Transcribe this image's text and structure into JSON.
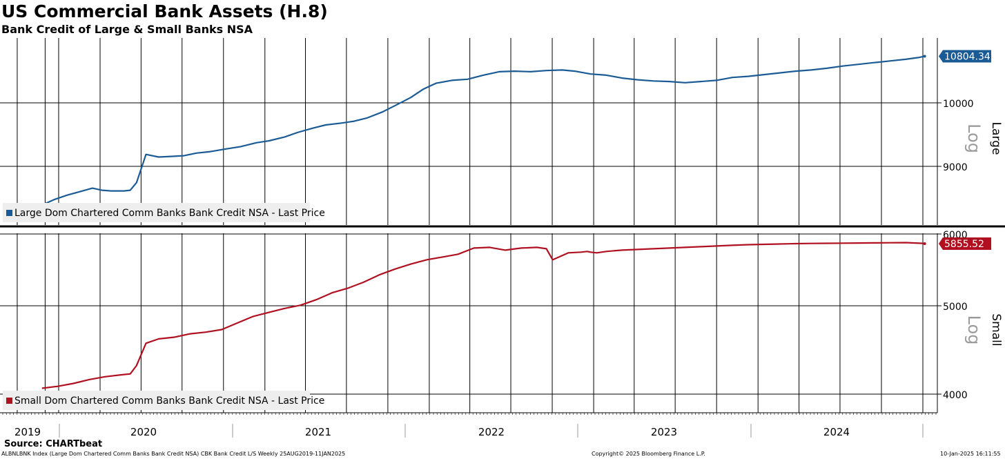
{
  "header": {
    "title": "US Commercial Bank Assets (H.8)",
    "subtitle": "Bank Credit of Large & Small Banks NSA"
  },
  "footer": {
    "source": "Source: CHARTbeat",
    "index_info": "ALBNLBNK Index (Large Dom Chartered Comm Banks Bank Credit NSA) CBK Bank Credit L/S  Weekly 25AUG2019-11JAN2025",
    "copyright": "Copyright© 2025 Bloomberg Finance L.P.",
    "timestamp": "10-Jan-2025  16:11:55"
  },
  "colors": {
    "large": "#1a5b95",
    "small": "#b01020",
    "grid": "#000000",
    "legend_bg": "#eeeeee",
    "scale_label": "#9a9a9a"
  },
  "chart_data": [
    {
      "type": "line",
      "panel": "top",
      "axis_title": "Large",
      "scale_label": "Log",
      "log_scale": true,
      "ylim": [
        8350,
        10950
      ],
      "y_ticks": [
        "10000",
        "9000"
      ],
      "x_labels": [
        "2019",
        "2020",
        "2021",
        "2022",
        "2023",
        "2024"
      ],
      "grid": true,
      "legend_position": "bottom-left",
      "last_value_label": "10804.34",
      "series": [
        {
          "name": "Large Dom Chartered Comm Banks Bank Credit NSA - Last Price",
          "color": "#1a5b95",
          "x": [
            "2019-08-25",
            "2019-09-22",
            "2019-10-20",
            "2019-11-17",
            "2019-12-15",
            "2020-01-05",
            "2020-01-26",
            "2020-02-23",
            "2020-03-08",
            "2020-03-22",
            "2020-04-12",
            "2020-05-10",
            "2020-06-07",
            "2020-07-05",
            "2020-08-02",
            "2020-08-30",
            "2020-10-04",
            "2020-11-08",
            "2020-12-13",
            "2021-01-10",
            "2021-02-14",
            "2021-03-14",
            "2021-04-18",
            "2021-05-16",
            "2021-06-20",
            "2021-07-18",
            "2021-08-15",
            "2021-09-19",
            "2021-10-24",
            "2021-11-21",
            "2021-12-19",
            "2022-01-16",
            "2022-02-20",
            "2022-03-27",
            "2022-05-01",
            "2022-06-05",
            "2022-07-10",
            "2022-08-14",
            "2022-09-18",
            "2022-10-23",
            "2022-11-20",
            "2022-12-25",
            "2023-01-29",
            "2023-03-05",
            "2023-04-09",
            "2023-05-14",
            "2023-06-18",
            "2023-07-23",
            "2023-08-27",
            "2023-10-01",
            "2023-11-05",
            "2023-12-10",
            "2024-01-14",
            "2024-02-18",
            "2024-03-24",
            "2024-04-28",
            "2024-06-02",
            "2024-07-07",
            "2024-08-11",
            "2024-09-15",
            "2024-10-20",
            "2024-11-24",
            "2024-12-22",
            "2025-01-05"
          ],
          "values": [
            8440,
            8520,
            8580,
            8630,
            8680,
            8650,
            8640,
            8640,
            8650,
            8760,
            9180,
            9140,
            9150,
            9160,
            9200,
            9220,
            9260,
            9300,
            9360,
            9390,
            9450,
            9520,
            9590,
            9640,
            9670,
            9700,
            9750,
            9850,
            9980,
            10090,
            10230,
            10330,
            10380,
            10400,
            10470,
            10530,
            10540,
            10530,
            10550,
            10560,
            10540,
            10490,
            10470,
            10420,
            10390,
            10370,
            10360,
            10340,
            10360,
            10380,
            10430,
            10450,
            10480,
            10510,
            10540,
            10560,
            10590,
            10630,
            10660,
            10690,
            10720,
            10750,
            10780,
            10804.34
          ]
        }
      ]
    },
    {
      "type": "line",
      "panel": "bottom",
      "axis_title": "Small",
      "scale_label": "Log",
      "log_scale": true,
      "ylim": [
        3850,
        6010
      ],
      "y_ticks": [
        "6000",
        "5000",
        "4000"
      ],
      "x_labels": [
        "2019",
        "2020",
        "2021",
        "2022",
        "2023",
        "2024"
      ],
      "grid": true,
      "legend_position": "bottom-left",
      "last_value_label": "5855.52",
      "series": [
        {
          "name": "Small Dom Chartered Comm Banks Bank Credit NSA - Last Price",
          "color": "#b01020",
          "x": [
            "2019-08-25",
            "2019-09-29",
            "2019-11-03",
            "2019-12-08",
            "2020-01-12",
            "2020-02-16",
            "2020-03-08",
            "2020-03-22",
            "2020-04-12",
            "2020-05-10",
            "2020-06-14",
            "2020-07-19",
            "2020-08-23",
            "2020-09-27",
            "2020-11-01",
            "2020-12-06",
            "2021-01-10",
            "2021-02-14",
            "2021-03-21",
            "2021-04-25",
            "2021-05-30",
            "2021-07-04",
            "2021-08-08",
            "2021-09-12",
            "2021-10-17",
            "2021-11-21",
            "2021-12-26",
            "2022-01-30",
            "2022-03-06",
            "2022-04-10",
            "2022-05-15",
            "2022-06-19",
            "2022-07-24",
            "2022-08-28",
            "2022-09-18",
            "2022-10-02",
            "2022-11-06",
            "2022-12-04",
            "2022-12-18",
            "2022-12-25",
            "2023-01-08",
            "2023-01-29",
            "2023-03-05",
            "2023-04-09",
            "2023-05-14",
            "2023-06-18",
            "2023-07-23",
            "2023-08-27",
            "2023-10-01",
            "2023-11-05",
            "2023-12-10",
            "2024-01-14",
            "2024-02-18",
            "2024-03-24",
            "2024-04-28",
            "2024-06-02",
            "2024-07-07",
            "2024-08-11",
            "2024-09-15",
            "2024-10-20",
            "2024-11-24",
            "2024-12-29",
            "2025-01-05"
          ],
          "values": [
            4060,
            4080,
            4110,
            4150,
            4180,
            4200,
            4210,
            4300,
            4550,
            4600,
            4620,
            4660,
            4680,
            4710,
            4790,
            4870,
            4920,
            4970,
            5010,
            5080,
            5170,
            5230,
            5310,
            5410,
            5490,
            5560,
            5620,
            5660,
            5700,
            5790,
            5800,
            5760,
            5790,
            5800,
            5780,
            5620,
            5720,
            5730,
            5740,
            5730,
            5720,
            5740,
            5760,
            5770,
            5780,
            5790,
            5800,
            5810,
            5820,
            5830,
            5840,
            5845,
            5850,
            5855,
            5858,
            5860,
            5862,
            5864,
            5866,
            5868,
            5870,
            5860,
            5855.52
          ]
        }
      ]
    }
  ]
}
